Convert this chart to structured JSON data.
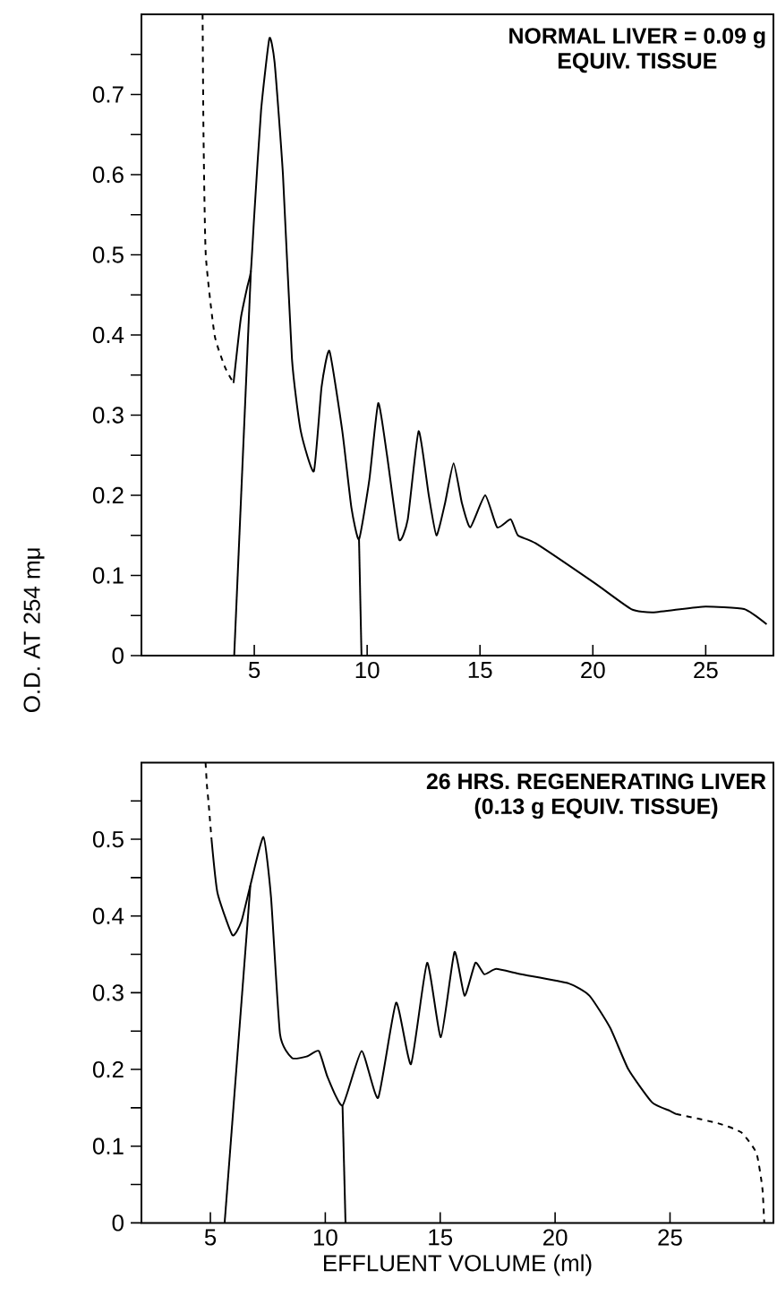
{
  "chart_data": [
    {
      "type": "line",
      "ylabel": "O.D. AT 254 mμ",
      "annotations": [
        "NORMAL LIVER = 0.09 g",
        "EQUIV. TISSUE"
      ],
      "marker": "none",
      "xlim": [
        0,
        28
      ],
      "ylim": [
        0,
        0.8
      ],
      "xticks": [
        5,
        10,
        15,
        20,
        25
      ],
      "yticks": [
        0,
        {
          "value": 0.05,
          "label": null
        },
        0.1,
        {
          "value": 0.15,
          "label": null
        },
        0.2,
        {
          "value": 0.25,
          "label": null
        },
        0.3,
        {
          "value": 0.35,
          "label": null
        },
        0.4,
        {
          "value": 0.45,
          "label": null
        },
        0.5,
        {
          "value": 0.55,
          "label": null
        },
        0.6,
        {
          "value": 0.65,
          "label": null
        },
        0.7,
        {
          "value": 0.75,
          "label": null
        }
      ],
      "series": [
        {
          "color": "#000000",
          "line_style": "dashed",
          "x": [
            2.71,
            2.75,
            2.85,
            3.24,
            3.7,
            4.08
          ],
          "values": [
            0.8,
            0.65,
            0.5,
            0.4,
            0.36,
            0.34
          ]
        },
        {
          "color": "#000000",
          "line_style": "solid",
          "x": [
            4.08,
            4.4,
            4.69,
            4.85,
            5.0,
            5.3,
            5.67,
            5.9,
            6.27,
            6.67,
            7.06,
            7.64,
            7.98,
            8.33,
            8.9,
            9.3,
            9.64,
            10.1,
            10.49,
            10.88,
            11.41,
            11.8,
            12.28,
            12.73,
            13.07,
            13.45,
            13.83,
            14.2,
            14.57,
            15.23,
            15.76,
            16.36,
            16.68,
            17.47,
            20.1,
            21.7,
            22.7,
            24.85,
            26.7,
            27.7
          ],
          "values": [
            0.34,
            0.42,
            0.46,
            0.48,
            0.55,
            0.68,
            0.77,
            0.74,
            0.6,
            0.37,
            0.28,
            0.23,
            0.335,
            0.38,
            0.28,
            0.185,
            0.145,
            0.22,
            0.315,
            0.25,
            0.145,
            0.17,
            0.28,
            0.2,
            0.15,
            0.19,
            0.24,
            0.19,
            0.16,
            0.2,
            0.16,
            0.17,
            0.15,
            0.14,
            0.09,
            0.058,
            0.054,
            0.061,
            0.058,
            0.039
          ]
        },
        {
          "color": "#000000",
          "line_style": "solid",
          "x": [
            4.11,
            4.85
          ],
          "values": [
            0,
            0.48
          ]
        },
        {
          "color": "#000000",
          "line_style": "solid",
          "x": [
            9.64,
            9.75
          ],
          "values": [
            0.145,
            0
          ]
        }
      ]
    },
    {
      "type": "line",
      "xlabel": "EFFLUENT VOLUME (ml)",
      "annotations": [
        "26 HRS. REGENERATING LIVER",
        "(0.13 g EQUIV. TISSUE)"
      ],
      "marker": "none",
      "xlim": [
        2,
        29.5
      ],
      "ylim": [
        0,
        0.6
      ],
      "xticks": [
        5,
        10,
        15,
        20,
        25
      ],
      "yticks": [
        0,
        {
          "value": 0.05,
          "label": null
        },
        0.1,
        {
          "value": 0.15,
          "label": null
        },
        0.2,
        {
          "value": 0.25,
          "label": null
        },
        0.3,
        {
          "value": 0.35,
          "label": null
        },
        0.4,
        {
          "value": 0.45,
          "label": null
        },
        0.5,
        {
          "value": 0.55,
          "label": null
        }
      ],
      "series": [
        {
          "color": "#000000",
          "line_style": "dashed",
          "x": [
            4.79,
            4.85,
            4.92,
            5.05
          ],
          "values": [
            0.6,
            0.57,
            0.548,
            0.5
          ]
        },
        {
          "color": "#000000",
          "line_style": "solid",
          "x": [
            5.05,
            5.31,
            5.96,
            6.35,
            6.74,
            7.31,
            7.64,
            8.03,
            8.55,
            9.2,
            9.72,
            10.1,
            10.75,
            11.58,
            12.3,
            13.08,
            13.73,
            14.43,
            15.03,
            15.62,
            16.06,
            16.53,
            16.92,
            17.44,
            18.52,
            20.6,
            21.5,
            22.4,
            23.19,
            24.22,
            25.0,
            25.26
          ],
          "values": [
            0.5,
            0.43,
            0.375,
            0.393,
            0.44,
            0.503,
            0.424,
            0.246,
            0.215,
            0.217,
            0.224,
            0.19,
            0.153,
            0.224,
            0.163,
            0.287,
            0.207,
            0.339,
            0.242,
            0.353,
            0.296,
            0.339,
            0.324,
            0.331,
            0.324,
            0.312,
            0.296,
            0.254,
            0.2,
            0.157,
            0.146,
            0.142
          ]
        },
        {
          "color": "#000000",
          "line_style": "dashed",
          "x": [
            25.26,
            27.07,
            28.1,
            28.76,
            29.02,
            29.1
          ],
          "values": [
            0.142,
            0.13,
            0.118,
            0.091,
            0.045,
            0
          ]
        },
        {
          "color": "#000000",
          "line_style": "solid",
          "x": [
            5.62,
            6.74
          ],
          "values": [
            0,
            0.44
          ]
        },
        {
          "color": "#000000",
          "line_style": "solid",
          "x": [
            10.75,
            10.88
          ],
          "values": [
            0.153,
            0
          ]
        }
      ]
    }
  ]
}
